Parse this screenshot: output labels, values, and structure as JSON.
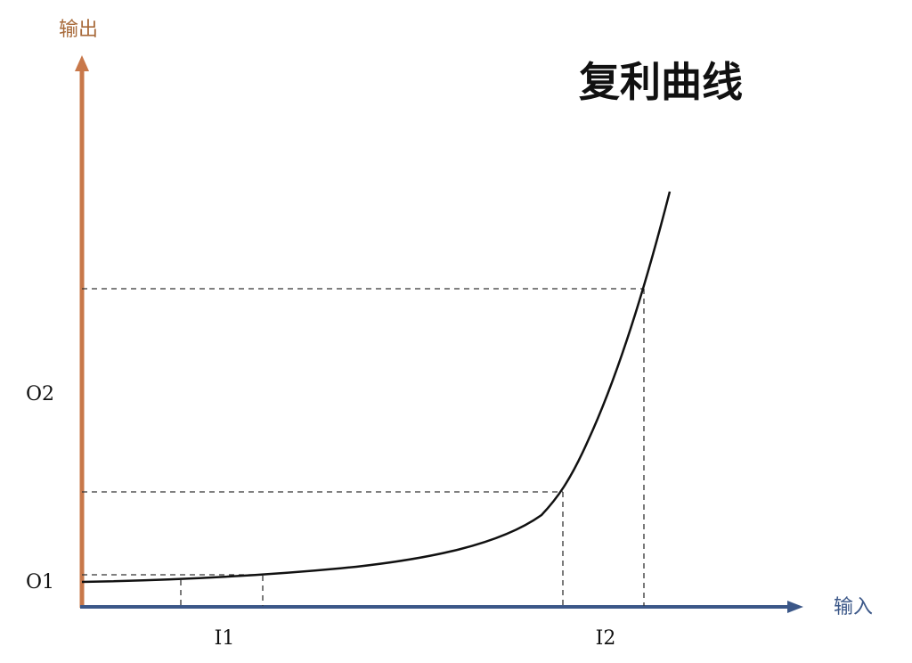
{
  "title": "复利曲线",
  "y_axis": {
    "label": "输出",
    "color": "#c8784a"
  },
  "x_axis": {
    "label": "输入",
    "color": "#3b5788"
  },
  "y_ticks": [
    "O1",
    "O2"
  ],
  "x_ticks": [
    "I1",
    "I2"
  ],
  "curve": {
    "shape": "exponential",
    "color": "#111111"
  },
  "guides": {
    "style": "dashed",
    "color": "#333333"
  }
}
